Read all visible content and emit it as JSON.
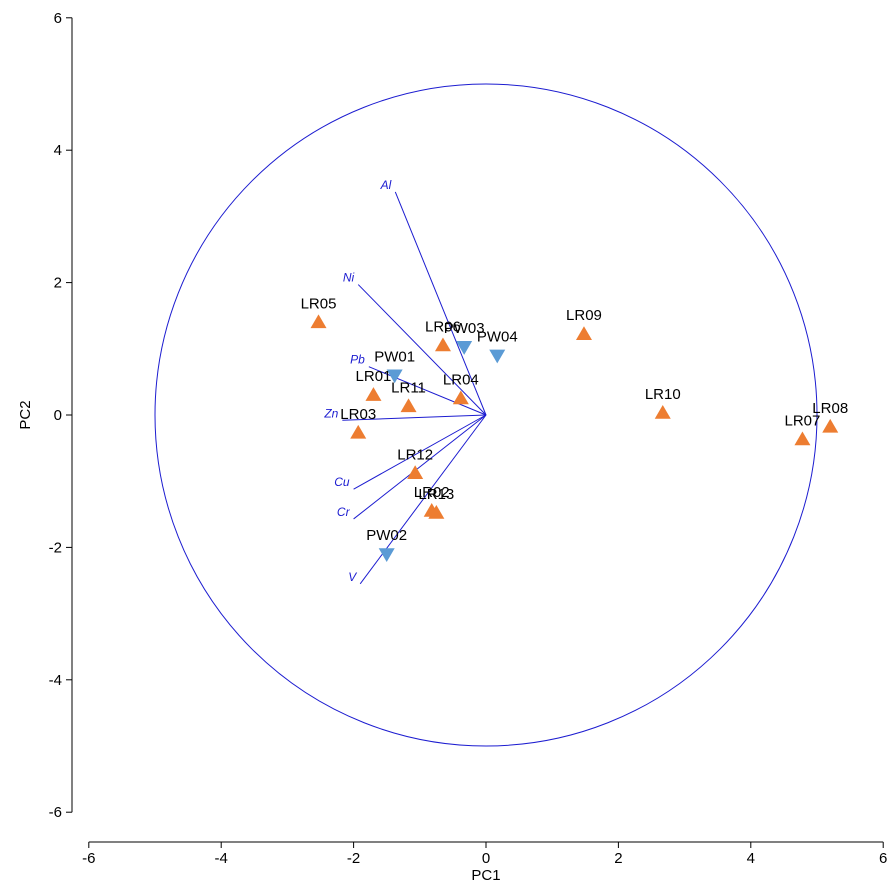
{
  "chart_data": {
    "type": "scatter",
    "title": "",
    "xlabel": "PC1",
    "ylabel": "PC2",
    "xlim": [
      -6,
      6
    ],
    "ylim": [
      -6,
      6
    ],
    "xticks": [
      -6,
      -4,
      -2,
      0,
      2,
      4,
      6
    ],
    "yticks": [
      -6,
      -4,
      -2,
      0,
      2,
      4,
      6
    ],
    "grid": false,
    "circle_radius": 5,
    "colors": {
      "LR": "#ed7d31",
      "PW": "#5b9bd5",
      "loadings": "#1c1cd0"
    },
    "series": [
      {
        "marker": "triangle-up",
        "points": [
          {
            "label": "LR01",
            "x": -1.7,
            "y": 0.3
          },
          {
            "label": "LR02",
            "x": -0.82,
            "y": -1.45
          },
          {
            "label": "LR03",
            "x": -1.93,
            "y": -0.27
          },
          {
            "label": "LR04",
            "x": -0.38,
            "y": 0.25
          },
          {
            "label": "LR05",
            "x": -2.53,
            "y": 1.4
          },
          {
            "label": "LR06",
            "x": -0.65,
            "y": 1.05
          },
          {
            "label": "LR07",
            "x": 4.78,
            "y": -0.37
          },
          {
            "label": "LR08",
            "x": 5.2,
            "y": -0.18
          },
          {
            "label": "LR09",
            "x": 1.48,
            "y": 1.22
          },
          {
            "label": "LR10",
            "x": 2.67,
            "y": 0.03
          },
          {
            "label": "LR11",
            "x": -1.17,
            "y": 0.13
          },
          {
            "label": "LR12",
            "x": -1.07,
            "y": -0.88
          },
          {
            "label": "LR13",
            "x": -0.75,
            "y": -1.48
          }
        ]
      },
      {
        "marker": "triangle-down",
        "points": [
          {
            "label": "PW01",
            "x": -1.38,
            "y": 0.6
          },
          {
            "label": "PW02",
            "x": -1.5,
            "y": -2.1
          },
          {
            "label": "PW03",
            "x": -0.33,
            "y": 1.03
          },
          {
            "label": "PW04",
            "x": 0.17,
            "y": 0.9
          }
        ]
      }
    ],
    "loadings": [
      {
        "label": "Al",
        "x": -1.37,
        "y": 3.37
      },
      {
        "label": "Ni",
        "x": -1.93,
        "y": 1.97
      },
      {
        "label": "Pb",
        "x": -1.77,
        "y": 0.73
      },
      {
        "label": "Zn",
        "x": -2.17,
        "y": -0.08
      },
      {
        "label": "Cu",
        "x": -2.0,
        "y": -1.12
      },
      {
        "label": "Cr",
        "x": -2.0,
        "y": -1.57
      },
      {
        "label": "V",
        "x": -1.9,
        "y": -2.55
      }
    ]
  }
}
